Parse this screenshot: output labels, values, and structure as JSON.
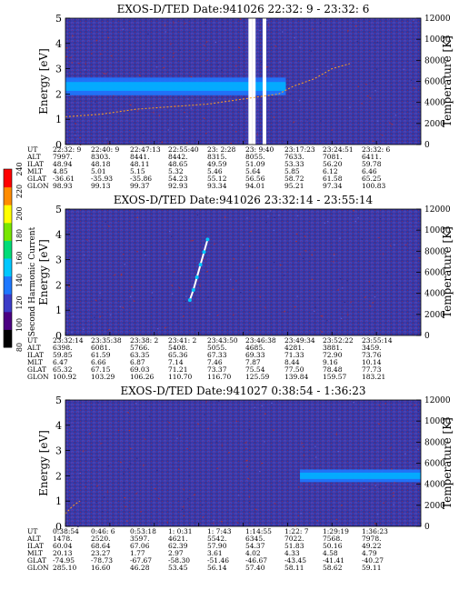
{
  "chart_data": {
    "type": "heatmap",
    "colorbar": {
      "label": "Second Harmonic Current",
      "ticks": [
        "80",
        "100",
        "120",
        "140",
        "160",
        "180",
        "200",
        "220",
        "240"
      ],
      "range": [
        80,
        240
      ],
      "colors": [
        "#000000",
        "#4b0082",
        "#3c3cc8",
        "#1e78ff",
        "#00c8ff",
        "#00dc78",
        "#78e600",
        "#ffff00",
        "#ff8c00",
        "#ff0000"
      ]
    },
    "panels": [
      {
        "title": "EXOS-D/TED   Date:941026  22:32: 9 - 23:32: 6",
        "ylabel": "Energy [eV]",
        "y2label": "Temperature [K]",
        "ylim": [
          0,
          5
        ],
        "y_ticks": [
          "0",
          "1",
          "2",
          "3",
          "4",
          "5"
        ],
        "y2lim": [
          0,
          12000
        ],
        "y2_ticks": [
          "0",
          "2000",
          "4000",
          "6000",
          "8000",
          "10000",
          "12000"
        ],
        "band": {
          "energy_center": 2.3,
          "energy_width": 0.7,
          "from_fraction": 0,
          "to_fraction": 0.62
        },
        "trace": [
          [
            0.0,
            1.1
          ],
          [
            0.1,
            1.2
          ],
          [
            0.2,
            1.4
          ],
          [
            0.3,
            1.5
          ],
          [
            0.4,
            1.6
          ],
          [
            0.5,
            1.8
          ],
          [
            0.55,
            1.9
          ],
          [
            0.6,
            2.0
          ],
          [
            0.64,
            2.3
          ],
          [
            0.7,
            2.6
          ],
          [
            0.75,
            3.0
          ],
          [
            0.8,
            3.2
          ]
        ],
        "gaps": [
          0.52,
          0.53,
          0.56
        ],
        "orbit": {
          "row_labels": [
            "UT",
            "ALT",
            "ILAT",
            "MLT",
            "GLAT",
            "GLON"
          ],
          "columns": [
            [
              "22:32: 9",
              "7997.",
              "48.94",
              "4.85",
              "-36.61",
              "98.93"
            ],
            [
              "22:40: 9",
              "8303.",
              "48.18",
              "5.01",
              "-35.93",
              "99.13"
            ],
            [
              "22:47:13",
              "8441.",
              "48.11",
              "5.15",
              "-35.86",
              "99.37"
            ],
            [
              "22:55:40",
              "8442.",
              "48.65",
              "5.32",
              "54.23",
              "92.93"
            ],
            [
              "23: 2:28",
              "8315.",
              "49.59",
              "5.46",
              "55.12",
              "93.34"
            ],
            [
              "23: 9:40",
              "8055.",
              "51.09",
              "5.64",
              "56.56",
              "94.01"
            ],
            [
              "23:17:23",
              "7633.",
              "53.33",
              "5.85",
              "58.72",
              "95.21"
            ],
            [
              "23:24:51",
              "7081.",
              "56.20",
              "6.12",
              "61.58",
              "97.34"
            ],
            [
              "23:32: 6",
              "6411.",
              "59.78",
              "6.46",
              "65.25",
              "100.83"
            ]
          ]
        }
      },
      {
        "title": "EXOS-D/TED   Date:941026  23:32:14 - 23:55:14",
        "ylabel": "Energy [eV]",
        "y2label": "Temperature [K]",
        "ylim": [
          0,
          5
        ],
        "y_ticks": [
          "0",
          "1",
          "2",
          "3",
          "4",
          "5"
        ],
        "y2lim": [
          0,
          12000
        ],
        "y2_ticks": [
          "0",
          "2000",
          "4000",
          "6000",
          "8000",
          "10000",
          "12000"
        ],
        "band": null,
        "trace": [
          [
            0.35,
            1.4
          ],
          [
            0.36,
            1.8
          ],
          [
            0.37,
            2.3
          ],
          [
            0.38,
            2.8
          ],
          [
            0.39,
            3.3
          ],
          [
            0.4,
            3.8
          ]
        ],
        "gaps": [],
        "orbit": {
          "row_labels": [
            "UT",
            "ALT",
            "ILAT",
            "MLT",
            "GLAT",
            "GLON"
          ],
          "columns": [
            [
              "23:32:14",
              "6398.",
              "59.85",
              "6.47",
              "65.32",
              "100.92"
            ],
            [
              "23:35:38",
              "6081.",
              "61.59",
              "6.66",
              "67.15",
              "103.29"
            ],
            [
              "23:38: 2",
              "5766.",
              "63.35",
              "6.87",
              "69.03",
              "106.26"
            ],
            [
              "23:41: 2",
              "5408.",
              "65.36",
              "7.14",
              "71.21",
              "110.70"
            ],
            [
              "23:43:50",
              "5055.",
              "67.33",
              "7.46",
              "73.37",
              "116.70"
            ],
            [
              "23:46:38",
              "4685.",
              "69.33",
              "7.87",
              "75.54",
              "125.59"
            ],
            [
              "23:49:34",
              "4281.",
              "71.33",
              "8.44",
              "77.50",
              "139.84"
            ],
            [
              "23:52:22",
              "3881.",
              "72.90",
              "9.16",
              "78.48",
              "159.57"
            ],
            [
              "23:55:14",
              "3459.",
              "73.76",
              "10.14",
              "77.73",
              "183.21"
            ]
          ]
        }
      },
      {
        "title": "EXOS-D/TED   Date:941027  0:38:54 - 1:36:23",
        "ylabel": "Energy [eV]",
        "y2label": "Temperature [K]",
        "ylim": [
          0,
          5
        ],
        "y_ticks": [
          "0",
          "1",
          "2",
          "3",
          "4",
          "5"
        ],
        "y2lim": [
          0,
          12000
        ],
        "y2_ticks": [
          "0",
          "2000",
          "4000",
          "6000",
          "8000",
          "10000",
          "12000"
        ],
        "band": {
          "energy_center": 2.0,
          "energy_width": 0.5,
          "from_fraction": 0.66,
          "to_fraction": 1.0
        },
        "trace": [
          [
            0.0,
            0.5
          ],
          [
            0.02,
            0.8
          ],
          [
            0.04,
            1.0
          ]
        ],
        "gaps": [],
        "orbit": {
          "row_labels": [
            "UT",
            "ALT",
            "ILAT",
            "MLT",
            "GLAT",
            "GLON"
          ],
          "columns": [
            [
              "0:38:54",
              "1478.",
              "60.04",
              "20.13",
              "-74.95",
              "285.10"
            ],
            [
              "0:46: 6",
              "2520.",
              "68.64",
              "23.27",
              "-78.73",
              "16.60"
            ],
            [
              "0:53:18",
              "3597.",
              "67.06",
              "1.77",
              "-67.67",
              "46.28"
            ],
            [
              "1: 0:31",
              "4621.",
              "62.39",
              "2.97",
              "-58.30",
              "53.45"
            ],
            [
              "1: 7:43",
              "5542.",
              "57.90",
              "3.61",
              "-51.46",
              "56.14"
            ],
            [
              "1:14:55",
              "6345.",
              "54.37",
              "4.02",
              "-46.67",
              "57.40"
            ],
            [
              "1:22: 7",
              "7022.",
              "51.83",
              "4.33",
              "-43.45",
              "58.11"
            ],
            [
              "1:29:19",
              "7568.",
              "50.16",
              "4.58",
              "-41.41",
              "58.62"
            ],
            [
              "1:36:23",
              "7978.",
              "49.22",
              "4.79",
              "-40.27",
              "59.11"
            ]
          ]
        }
      }
    ]
  }
}
